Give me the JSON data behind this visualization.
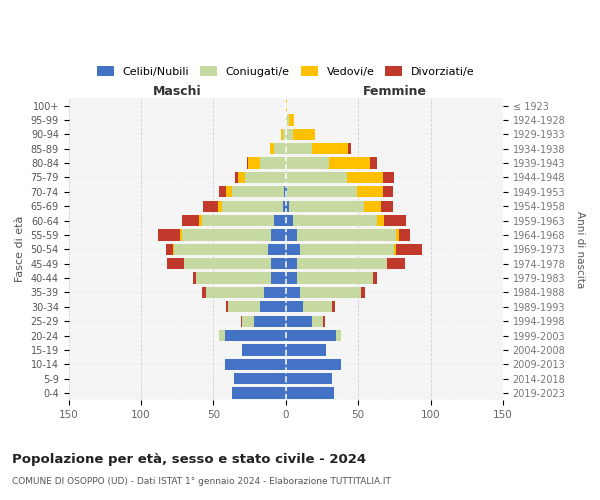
{
  "age_groups": [
    "0-4",
    "5-9",
    "10-14",
    "15-19",
    "20-24",
    "25-29",
    "30-34",
    "35-39",
    "40-44",
    "45-49",
    "50-54",
    "55-59",
    "60-64",
    "65-69",
    "70-74",
    "75-79",
    "80-84",
    "85-89",
    "90-94",
    "95-99",
    "100+"
  ],
  "birth_years": [
    "2019-2023",
    "2014-2018",
    "2009-2013",
    "2004-2008",
    "1999-2003",
    "1994-1998",
    "1989-1993",
    "1984-1988",
    "1979-1983",
    "1974-1978",
    "1969-1973",
    "1964-1968",
    "1959-1963",
    "1954-1958",
    "1949-1953",
    "1944-1948",
    "1939-1943",
    "1934-1938",
    "1929-1933",
    "1924-1928",
    "≤ 1923"
  ],
  "maschi": {
    "celibe": [
      37,
      36,
      42,
      30,
      42,
      22,
      18,
      15,
      10,
      10,
      12,
      10,
      8,
      2,
      1,
      0,
      0,
      0,
      0,
      0,
      0
    ],
    "coniugato": [
      0,
      0,
      0,
      0,
      4,
      8,
      22,
      40,
      52,
      60,
      65,
      62,
      50,
      42,
      36,
      28,
      18,
      8,
      2,
      0,
      0
    ],
    "vedovo": [
      0,
      0,
      0,
      0,
      0,
      0,
      0,
      0,
      0,
      0,
      1,
      1,
      2,
      3,
      4,
      5,
      8,
      3,
      1,
      0,
      0
    ],
    "divorziato": [
      0,
      0,
      0,
      0,
      0,
      1,
      1,
      3,
      2,
      12,
      5,
      15,
      12,
      10,
      5,
      2,
      1,
      0,
      0,
      0,
      0
    ]
  },
  "femmine": {
    "nubile": [
      33,
      32,
      38,
      28,
      35,
      18,
      12,
      10,
      8,
      8,
      10,
      8,
      5,
      2,
      1,
      0,
      0,
      0,
      0,
      0,
      0
    ],
    "coniugata": [
      0,
      0,
      0,
      0,
      3,
      8,
      20,
      42,
      52,
      62,
      65,
      68,
      58,
      52,
      48,
      42,
      30,
      18,
      5,
      2,
      0
    ],
    "vedova": [
      0,
      0,
      0,
      0,
      0,
      0,
      0,
      0,
      0,
      0,
      1,
      2,
      5,
      12,
      18,
      25,
      28,
      25,
      15,
      4,
      1
    ],
    "divorziata": [
      0,
      0,
      0,
      0,
      0,
      1,
      2,
      3,
      3,
      12,
      18,
      8,
      15,
      8,
      7,
      8,
      5,
      2,
      0,
      0,
      0
    ]
  },
  "colors": {
    "celibe_nubile": "#4472c4",
    "coniugato_a": "#c5d9a0",
    "vedovo_a": "#ffc000",
    "divorziato_a": "#c0392b"
  },
  "title": "Popolazione per età, sesso e stato civile - 2024",
  "subtitle": "COMUNE DI OSOPPO (UD) - Dati ISTAT 1° gennaio 2024 - Elaborazione TUTTITALIA.IT",
  "xlabel_left": "Maschi",
  "xlabel_right": "Femmine",
  "ylabel_left": "Fasce di età",
  "ylabel_right": "Anni di nascita",
  "xlim": 150,
  "bg_color": "#ffffff",
  "grid_color": "#cccccc",
  "legend_labels": [
    "Celibi/Nubili",
    "Coniugati/e",
    "Vedovi/e",
    "Divorziati/e"
  ]
}
